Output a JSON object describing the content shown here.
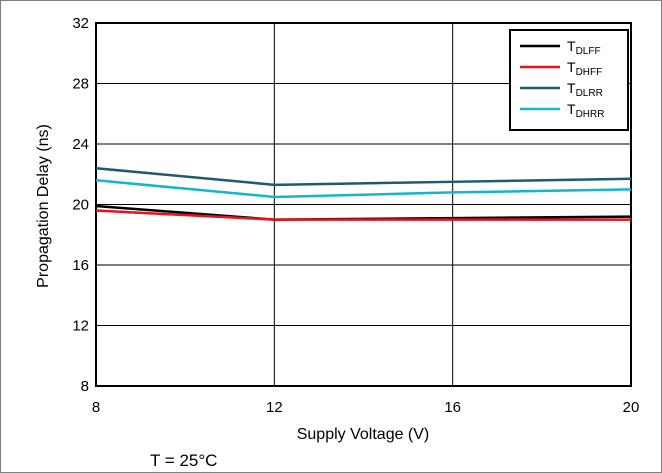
{
  "chart_data": {
    "type": "line",
    "xlabel": "Supply Voltage (V)",
    "ylabel": "Propagation Delay (ns)",
    "xlim": [
      8,
      20
    ],
    "ylim": [
      8,
      32
    ],
    "x_ticks": [
      8,
      12,
      16,
      20
    ],
    "y_ticks": [
      8,
      12,
      16,
      20,
      24,
      28,
      32
    ],
    "grid": true,
    "legend_position": "top-right",
    "x": [
      8,
      12,
      16,
      20
    ],
    "series": [
      {
        "name": "T",
        "sub": "DLFF",
        "color": "#000000",
        "values": [
          19.9,
          19.0,
          19.1,
          19.2
        ]
      },
      {
        "name": "T",
        "sub": "DHFF",
        "color": "#e8111d",
        "values": [
          19.6,
          19.0,
          19.0,
          19.0
        ]
      },
      {
        "name": "T",
        "sub": "DLRR",
        "color": "#1f5a6e",
        "values": [
          22.4,
          21.3,
          21.5,
          21.7
        ]
      },
      {
        "name": "T",
        "sub": "DHRR",
        "color": "#15b5cc",
        "values": [
          21.6,
          20.5,
          20.8,
          21.0
        ]
      }
    ]
  },
  "caption": "T = 25°C"
}
